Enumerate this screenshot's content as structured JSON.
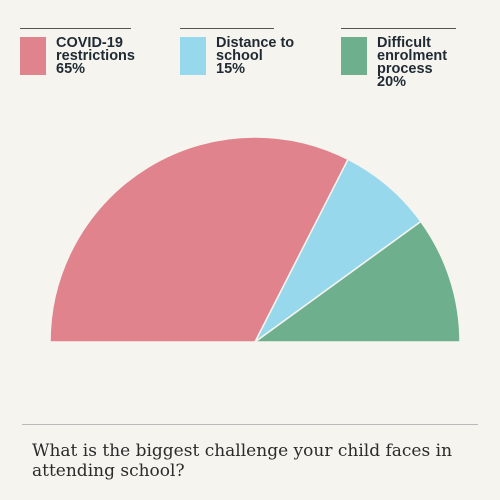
{
  "chart_data": {
    "type": "pie",
    "variant": "semicircle",
    "slices": [
      {
        "label_lines": [
          "COVID-19",
          "restrictions"
        ],
        "percent_label": "65%",
        "value": 65,
        "color": "#e0838c"
      },
      {
        "label_lines": [
          "Distance to",
          "school"
        ],
        "percent_label": "15%",
        "value": 15,
        "color": "#98d8ec"
      },
      {
        "label_lines": [
          "Difficult",
          "enrolment",
          "process"
        ],
        "percent_label": "20%",
        "value": 20,
        "color": "#6eb08e"
      }
    ],
    "legend_position": "top"
  },
  "question": "What is the biggest challenge your child faces in attending school?"
}
